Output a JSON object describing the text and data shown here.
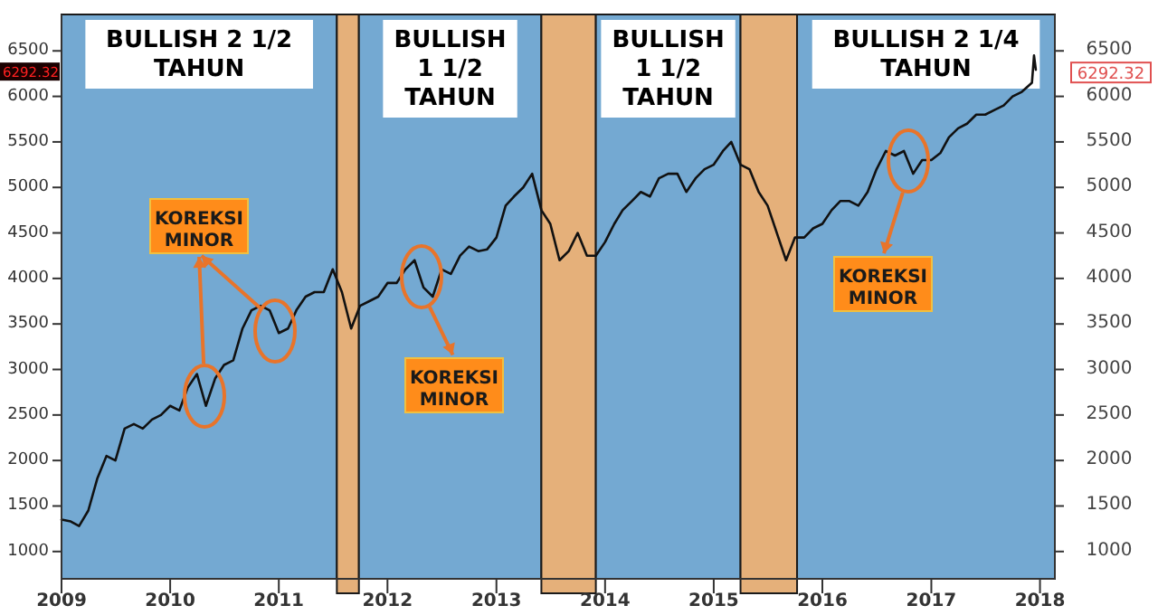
{
  "chart_data": {
    "type": "line",
    "x": [
      "2009-01",
      "2009-02",
      "2009-03",
      "2009-04",
      "2009-05",
      "2009-06",
      "2009-07",
      "2009-08",
      "2009-09",
      "2009-10",
      "2009-11",
      "2009-12",
      "2010-01",
      "2010-02",
      "2010-03",
      "2010-04",
      "2010-05",
      "2010-06",
      "2010-07",
      "2010-08",
      "2010-09",
      "2010-10",
      "2010-11",
      "2010-12",
      "2011-01",
      "2011-02",
      "2011-03",
      "2011-04",
      "2011-05",
      "2011-06",
      "2011-07",
      "2011-08",
      "2011-09",
      "2011-10",
      "2011-11",
      "2011-12",
      "2012-01",
      "2012-02",
      "2012-03",
      "2012-04",
      "2012-05",
      "2012-06",
      "2012-07",
      "2012-08",
      "2012-09",
      "2012-10",
      "2012-11",
      "2012-12",
      "2013-01",
      "2013-02",
      "2013-03",
      "2013-04",
      "2013-05",
      "2013-06",
      "2013-07",
      "2013-08",
      "2013-09",
      "2013-10",
      "2013-11",
      "2013-12",
      "2014-01",
      "2014-02",
      "2014-03",
      "2014-04",
      "2014-05",
      "2014-06",
      "2014-07",
      "2014-08",
      "2014-09",
      "2014-10",
      "2014-11",
      "2014-12",
      "2015-01",
      "2015-02",
      "2015-03",
      "2015-04",
      "2015-05",
      "2015-06",
      "2015-07",
      "2015-08",
      "2015-09",
      "2015-10",
      "2015-11",
      "2015-12",
      "2016-01",
      "2016-02",
      "2016-03",
      "2016-04",
      "2016-05",
      "2016-06",
      "2016-07",
      "2016-08",
      "2016-09",
      "2016-10",
      "2016-11",
      "2016-12",
      "2017-01",
      "2017-02",
      "2017-03",
      "2017-04",
      "2017-05",
      "2017-06",
      "2017-07",
      "2017-08",
      "2017-09",
      "2017-10",
      "2017-11",
      "2017-12-05",
      "2017-12-12",
      "2017-12-18"
    ],
    "series": [
      {
        "color": "#111111",
        "values": [
          1350,
          1330,
          1280,
          1450,
          1800,
          2050,
          2000,
          2350,
          2400,
          2350,
          2450,
          2500,
          2600,
          2550,
          2800,
          2950,
          2600,
          2900,
          3050,
          3100,
          3450,
          3650,
          3700,
          3650,
          3400,
          3450,
          3650,
          3800,
          3850,
          3850,
          4100,
          3850,
          3450,
          3700,
          3750,
          3800,
          3950,
          3950,
          4100,
          4200,
          3900,
          3800,
          4100,
          4050,
          4250,
          4350,
          4300,
          4320,
          4450,
          4800,
          4900,
          5000,
          5150,
          4750,
          4600,
          4200,
          4300,
          4500,
          4250,
          4250,
          4400,
          4600,
          4750,
          4850,
          4950,
          4900,
          5100,
          5150,
          5150,
          4950,
          5100,
          5200,
          5250,
          5400,
          5500,
          5250,
          5200,
          4950,
          4800,
          4500,
          4200,
          4450,
          4450,
          4550,
          4600,
          4750,
          4850,
          4850,
          4800,
          4950,
          5200,
          5400,
          5350,
          5400,
          5150,
          5300,
          5300,
          5380,
          5550,
          5650,
          5700,
          5800,
          5800,
          5850,
          5900,
          6000,
          6050,
          6150,
          6450,
          6292.32
        ]
      }
    ],
    "xlim": [
      "2009-01",
      "2018-02-20"
    ],
    "xticks": [
      {
        "value": "2009",
        "label": "2009"
      },
      {
        "value": "2010",
        "label": "2010"
      },
      {
        "value": "2011",
        "label": "2011"
      },
      {
        "value": "2012",
        "label": "2012"
      },
      {
        "value": "2013",
        "label": "2013"
      },
      {
        "value": "2014",
        "label": "2014"
      },
      {
        "value": "2015",
        "label": "2015"
      },
      {
        "value": "2016",
        "label": "2016"
      },
      {
        "value": "2017",
        "label": "2017"
      },
      {
        "value": "2018",
        "label": "2018"
      }
    ],
    "ylim": [
      700,
      6900
    ],
    "yticks": [
      1000,
      1500,
      2000,
      2500,
      3000,
      3500,
      4000,
      4500,
      5000,
      5500,
      6000,
      6500
    ],
    "y2lim": [
      700,
      6900
    ],
    "y2ticks": [
      1000,
      1500,
      2000,
      2500,
      3000,
      3500,
      4000,
      4500,
      5000,
      5500,
      6000,
      6500
    ],
    "grid": false,
    "marker": "none",
    "line_style": "solid",
    "bands": [
      {
        "axis": "x",
        "from": "2009-01",
        "to": "2011-07-15",
        "label": "BULLISH 2 1/2 TAHUN",
        "color": "#74a9d2"
      },
      {
        "axis": "x",
        "from": "2011-07-15",
        "to": "2011-09-27",
        "color": "#e5b07a"
      },
      {
        "axis": "x",
        "from": "2011-09-27",
        "to": "2013-06-01",
        "label": "BULLISH 1 1/2 TAHUN",
        "color": "#74a9d2"
      },
      {
        "axis": "x",
        "from": "2013-06-01",
        "to": "2013-12-01",
        "color": "#e5b07a"
      },
      {
        "axis": "x",
        "from": "2013-12-01",
        "to": "2015-04-01",
        "label": "BULLISH 1 1/2 TAHUN",
        "color": "#74a9d2"
      },
      {
        "axis": "x",
        "from": "2015-04-01",
        "to": "2015-10-08",
        "color": "#e5b07a"
      },
      {
        "axis": "x",
        "from": "2015-10-08",
        "to": "2018-02-20",
        "label": "BULLISH 2 1/4 TAHUN",
        "color": "#74a9d2"
      }
    ],
    "annotations": [
      "KOREKSI MINOR",
      "KOREKSI MINOR",
      "KOREKSI MINOR",
      {
        "text": "6292.32",
        "x": "2017-12-18",
        "y": 6292.32
      }
    ]
  }
}
